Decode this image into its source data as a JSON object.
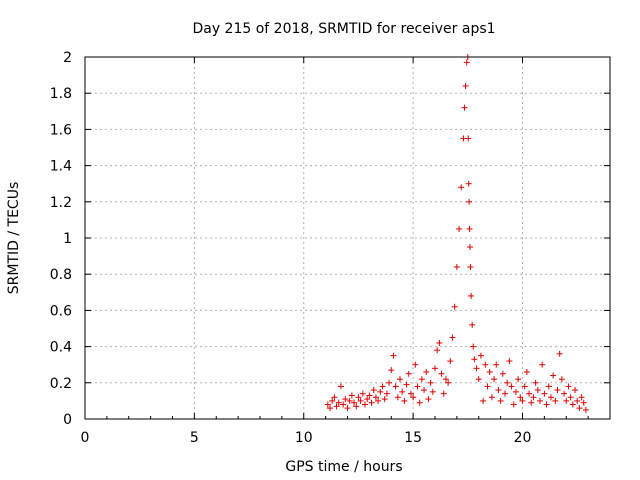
{
  "chart_data": {
    "type": "scatter",
    "title": "Day 215 of 2018, SRMTID for receiver aps1",
    "xlabel": "GPS time / hours",
    "ylabel": "SRMTID / TECUs",
    "xlim": [
      0,
      24
    ],
    "ylim": [
      0,
      2
    ],
    "xticks": [
      0,
      5,
      10,
      15,
      20
    ],
    "yticks": [
      0,
      0.2,
      0.4,
      0.6,
      0.8,
      1,
      1.2,
      1.4,
      1.6,
      1.8,
      2
    ],
    "ytick_labels": [
      "0",
      "0.2",
      "0.4",
      "0.6",
      "0.8",
      "1",
      "1.2",
      "1.4",
      "1.6",
      "1.8",
      "2"
    ],
    "xtick_labels": [
      "0",
      "5",
      "10",
      "15",
      "20"
    ],
    "grid": true,
    "marker": "+",
    "marker_color": "#e00000",
    "series": [
      {
        "name": "aps1",
        "x": [
          11.1,
          11.2,
          11.3,
          11.4,
          11.5,
          11.6,
          11.7,
          11.8,
          11.9,
          12.0,
          12.1,
          12.2,
          12.3,
          12.4,
          12.5,
          12.6,
          12.7,
          12.8,
          12.9,
          13.0,
          13.1,
          13.2,
          13.3,
          13.4,
          13.5,
          13.6,
          13.7,
          13.8,
          13.9,
          14.0,
          14.1,
          14.2,
          14.3,
          14.4,
          14.5,
          14.6,
          14.7,
          14.8,
          14.9,
          15.0,
          15.1,
          15.2,
          15.3,
          15.4,
          15.5,
          15.6,
          15.7,
          15.8,
          15.9,
          16.0,
          16.1,
          16.2,
          16.3,
          16.4,
          16.5,
          16.6,
          16.7,
          16.8,
          16.9,
          17.0,
          17.1,
          17.2,
          17.3,
          17.35,
          17.4,
          17.45,
          17.5,
          17.52,
          17.54,
          17.56,
          17.58,
          17.6,
          17.62,
          17.65,
          17.7,
          17.75,
          17.8,
          17.9,
          18.0,
          18.1,
          18.2,
          18.3,
          18.4,
          18.5,
          18.6,
          18.7,
          18.8,
          18.9,
          19.0,
          19.1,
          19.2,
          19.3,
          19.4,
          19.5,
          19.6,
          19.7,
          19.8,
          19.9,
          20.0,
          20.1,
          20.2,
          20.3,
          20.4,
          20.5,
          20.6,
          20.7,
          20.8,
          20.9,
          21.0,
          21.1,
          21.2,
          21.3,
          21.4,
          21.5,
          21.6,
          21.7,
          21.8,
          21.9,
          22.0,
          22.1,
          22.2,
          22.3,
          22.4,
          22.5,
          22.6,
          22.7,
          22.8,
          22.9
        ],
        "y": [
          0.08,
          0.06,
          0.1,
          0.12,
          0.07,
          0.09,
          0.18,
          0.08,
          0.11,
          0.06,
          0.1,
          0.13,
          0.09,
          0.07,
          0.12,
          0.1,
          0.14,
          0.08,
          0.11,
          0.13,
          0.09,
          0.16,
          0.12,
          0.1,
          0.15,
          0.18,
          0.11,
          0.14,
          0.2,
          0.27,
          0.35,
          0.18,
          0.12,
          0.22,
          0.15,
          0.1,
          0.19,
          0.25,
          0.14,
          0.12,
          0.3,
          0.18,
          0.09,
          0.22,
          0.16,
          0.26,
          0.11,
          0.2,
          0.15,
          0.28,
          0.38,
          0.42,
          0.25,
          0.14,
          0.22,
          0.2,
          0.32,
          0.45,
          0.62,
          0.84,
          1.05,
          1.28,
          1.55,
          1.72,
          1.84,
          1.97,
          2.0,
          1.55,
          1.3,
          1.2,
          1.05,
          0.95,
          0.84,
          0.68,
          0.52,
          0.4,
          0.33,
          0.28,
          0.22,
          0.35,
          0.1,
          0.3,
          0.18,
          0.26,
          0.12,
          0.22,
          0.3,
          0.16,
          0.1,
          0.25,
          0.14,
          0.2,
          0.32,
          0.18,
          0.08,
          0.15,
          0.22,
          0.12,
          0.1,
          0.18,
          0.26,
          0.14,
          0.09,
          0.12,
          0.2,
          0.16,
          0.1,
          0.3,
          0.14,
          0.08,
          0.18,
          0.12,
          0.24,
          0.1,
          0.16,
          0.36,
          0.22,
          0.14,
          0.1,
          0.18,
          0.12,
          0.08,
          0.16,
          0.1,
          0.06,
          0.12,
          0.09,
          0.05
        ],
        "points": 128
      }
    ]
  }
}
